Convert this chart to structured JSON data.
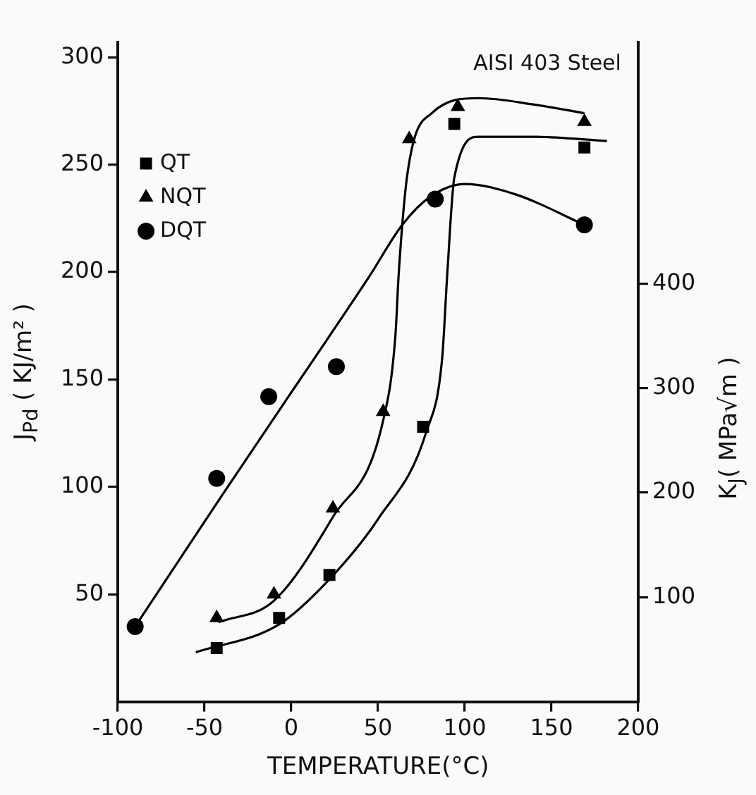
{
  "chart_data": {
    "type": "scatter",
    "title": "AISI 403 Steel",
    "xlabel": "TEMPERATURE(°C)",
    "ylabel": "J$_{Pd}$ ( KJ/m² )",
    "y2label": "K$_{J}$( MPa√m )",
    "xlim": [
      -100,
      200
    ],
    "xticks": [
      -100,
      -50,
      0,
      50,
      100,
      150,
      200
    ],
    "ylim": [
      0,
      307
    ],
    "yticks": [
      50,
      100,
      150,
      200,
      250,
      300
    ],
    "y2lim": [
      0,
      631
    ],
    "y2ticks": [
      100,
      200,
      300,
      400
    ],
    "grid": false,
    "legend": "top left",
    "series": [
      {
        "name": "QT",
        "marker": "square",
        "color": "#000000",
        "x": [
          -43,
          -7,
          22,
          76,
          94,
          169
        ],
        "values": [
          25,
          39,
          59,
          128,
          269,
          258
        ]
      },
      {
        "name": "NQT",
        "marker": "triangle",
        "color": "#000000",
        "x": [
          -43,
          -10,
          24,
          53,
          68,
          96,
          169
        ],
        "values": [
          39,
          50,
          90,
          135,
          262,
          277,
          270
        ]
      },
      {
        "name": "DQT",
        "marker": "circle",
        "color": "#000000",
        "x": [
          -90,
          -43,
          -13,
          26,
          83,
          169
        ],
        "values": [
          35,
          104,
          142,
          156,
          234,
          222
        ]
      },
      {
        "type": "line",
        "marker": "none",
        "color": "#000000",
        "x": [
          -55,
          -7,
          22,
          50,
          78,
          87,
          90,
          94,
          108,
          140,
          182
        ],
        "values": [
          23,
          36,
          57,
          85,
          126,
          160,
          200,
          244,
          263,
          263,
          261
        ]
      },
      {
        "type": "line",
        "marker": "none",
        "color": "#000000",
        "x": [
          -42,
          -10,
          24,
          53,
          60,
          62,
          67,
          81,
          108,
          140,
          169
        ],
        "values": [
          37,
          47,
          86,
          131,
          170,
          200,
          246,
          274,
          281,
          278,
          274
        ]
      },
      {
        "type": "line",
        "marker": "none",
        "color": "#000000",
        "x": [
          -90,
          -40,
          0,
          21,
          45,
          64,
          80,
          100,
          130,
          169
        ],
        "values": [
          35,
          96,
          144,
          169,
          198,
          222,
          235,
          241,
          236,
          222
        ]
      }
    ]
  }
}
